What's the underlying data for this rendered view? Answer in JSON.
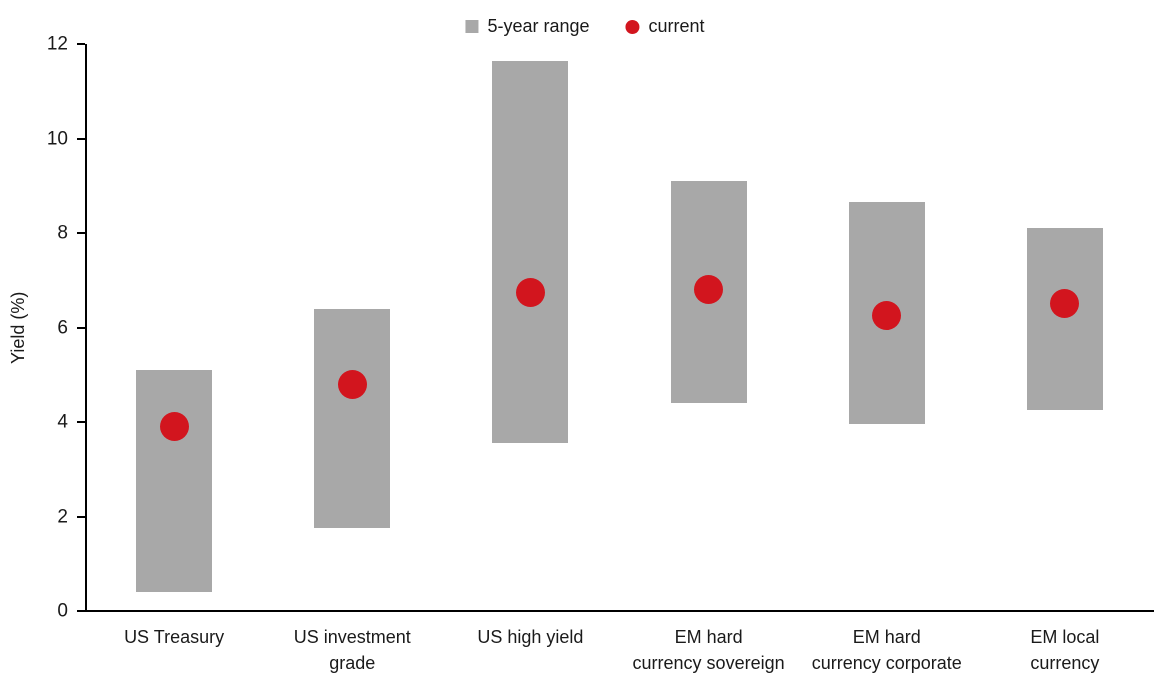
{
  "chart_data": {
    "type": "bar",
    "subtype": "floating-range-bars-with-current-point",
    "title": "",
    "ylabel": "Yield (%)",
    "ylim": [
      0,
      12
    ],
    "yticks": [
      0,
      2,
      4,
      6,
      8,
      10,
      12
    ],
    "grid": false,
    "legend_position": "top-center",
    "categories": [
      "US Treasury",
      "US investment\ngrade",
      "US high yield",
      "EM hard\ncurrency sovereign",
      "EM hard\ncurrency corporate",
      "EM local\ncurrency"
    ],
    "series": [
      {
        "name": "5-year range",
        "marker": "bar",
        "color": "#a8a8a8",
        "low": [
          0.4,
          1.75,
          3.55,
          4.4,
          3.95,
          4.25
        ],
        "high": [
          5.1,
          6.4,
          11.65,
          9.1,
          8.65,
          8.1
        ]
      },
      {
        "name": "current",
        "marker": "dot",
        "color": "#d2151e",
        "values": [
          3.9,
          4.8,
          6.75,
          6.8,
          6.25,
          6.5
        ]
      }
    ],
    "legend": [
      {
        "label": "5-year range",
        "marker": "square",
        "color": "#a8a8a8"
      },
      {
        "label": "current",
        "marker": "circle",
        "color": "#d2151e"
      }
    ]
  }
}
